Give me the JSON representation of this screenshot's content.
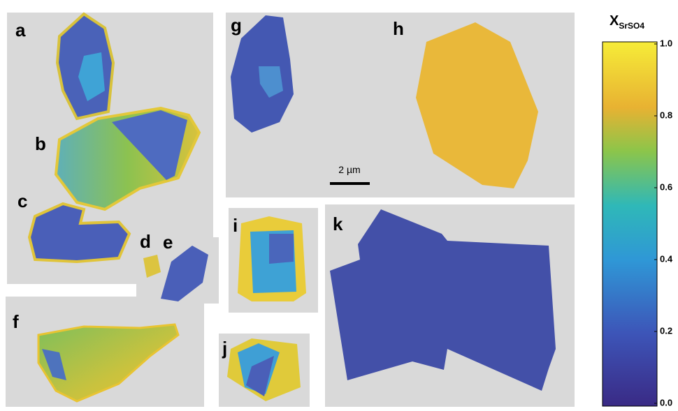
{
  "panels": {
    "labels": [
      "a",
      "b",
      "c",
      "d",
      "e",
      "f",
      "g",
      "h",
      "i",
      "j",
      "k"
    ]
  },
  "scale_bar": {
    "label": "2 µm"
  },
  "colorbar": {
    "title": "X",
    "subscript": "SrSO4",
    "range": [
      0,
      1
    ],
    "ticks": [
      {
        "value": 0,
        "label": "0.0"
      },
      0.2,
      0.4,
      0.6,
      0.8,
      {
        "value": 1,
        "label": "1.0"
      }
    ]
  }
}
